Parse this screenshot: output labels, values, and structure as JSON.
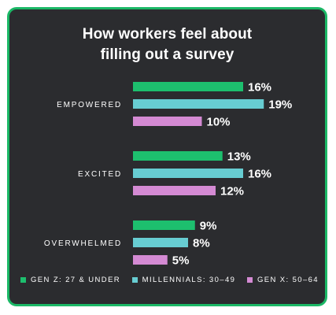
{
  "chart_data": {
    "type": "bar",
    "orientation": "horizontal",
    "title_lines": [
      "How workers feel about",
      "filling out a survey"
    ],
    "categories": [
      "EMPOWERED",
      "EXCITED",
      "OVERWHELMED"
    ],
    "series": [
      {
        "name": "GEN Z: 27 & UNDER",
        "color": "#1dbf6e",
        "values": [
          16,
          13,
          9
        ]
      },
      {
        "name": "MILLENNIALS: 30–49",
        "color": "#67cdd2",
        "values": [
          19,
          16,
          8
        ]
      },
      {
        "name": "GEN X: 50–64",
        "color": "#d48ad3",
        "values": [
          10,
          12,
          5
        ]
      }
    ],
    "value_suffix": "%",
    "legend_position": "bottom",
    "grid": false
  }
}
